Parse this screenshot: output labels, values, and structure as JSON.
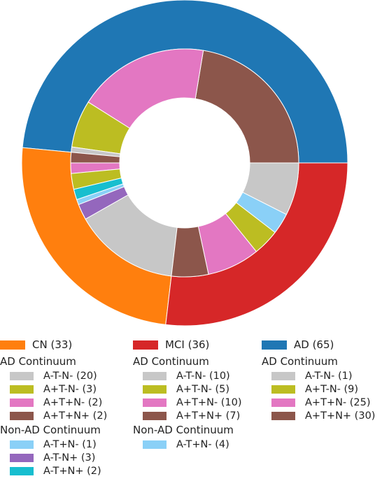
{
  "chart_data": {
    "type": "pie",
    "groups": [
      {
        "label": "CN (33)",
        "color": "#ff7f0e",
        "sections": [
          {
            "title": "AD Continuum",
            "items": [
              {
                "label": "A-T-N- (20)",
                "value": 20,
                "color": "#c7c7c7"
              },
              {
                "label": "A+T-N- (3)",
                "value": 3,
                "color": "#bcbd22"
              },
              {
                "label": "A+T+N- (2)",
                "value": 2,
                "color": "#e377c2"
              },
              {
                "label": "A+T+N+ (2)",
                "value": 2,
                "color": "#8c564b"
              }
            ]
          },
          {
            "title": "Non-AD Continuum",
            "items": [
              {
                "label": "A-T+N- (1)",
                "value": 1,
                "color": "#8ad0f7"
              },
              {
                "label": "A-T-N+ (3)",
                "value": 3,
                "color": "#9467bd"
              },
              {
                "label": "A-T+N+ (2)",
                "value": 2,
                "color": "#17becf"
              }
            ]
          }
        ]
      },
      {
        "label": "MCI (36)",
        "color": "#d62728",
        "sections": [
          {
            "title": "AD Continuum",
            "items": [
              {
                "label": "A-T-N- (10)",
                "value": 10,
                "color": "#c7c7c7"
              },
              {
                "label": "A+T-N- (5)",
                "value": 5,
                "color": "#bcbd22"
              },
              {
                "label": "A+T+N- (10)",
                "value": 10,
                "color": "#e377c2"
              },
              {
                "label": "A+T+N+ (7)",
                "value": 7,
                "color": "#8c564b"
              }
            ]
          },
          {
            "title": "Non-AD Continuum",
            "items": [
              {
                "label": "A-T+N- (4)",
                "value": 4,
                "color": "#8ad0f7"
              }
            ]
          }
        ]
      },
      {
        "label": "AD (65)",
        "color": "#1f77b4",
        "sections": [
          {
            "title": "AD Continuum",
            "items": [
              {
                "label": "A-T-N- (1)",
                "value": 1,
                "color": "#c7c7c7"
              },
              {
                "label": "A+T-N- (9)",
                "value": 9,
                "color": "#bcbd22"
              },
              {
                "label": "A+T+N- (25)",
                "value": 25,
                "color": "#e377c2"
              },
              {
                "label": "A+T+N+ (30)",
                "value": 30,
                "color": "#8c564b"
              }
            ]
          }
        ]
      }
    ],
    "outer_values": [
      33,
      36,
      65
    ],
    "inner_order_ccw_from_east": [
      "AD A+T+N+ (30)",
      "AD A+T+N- (25)",
      "AD A+T-N- (9)",
      "AD A-T-N- (1)",
      "CN A+T+N+ (2)",
      "CN A+T+N- (2)",
      "CN A+T-N- (3)",
      "CN A-T+N+ (2)",
      "CN A-T+N- (1)",
      "CN A-T-N+ (3)",
      "CN A-T-N- (20)",
      "MCI A+T+N+ (7)",
      "MCI A+T+N- (10)",
      "MCI A+T-N- (5)",
      "MCI A-T+N- (4)",
      "MCI A-T-N- (10)"
    ]
  }
}
